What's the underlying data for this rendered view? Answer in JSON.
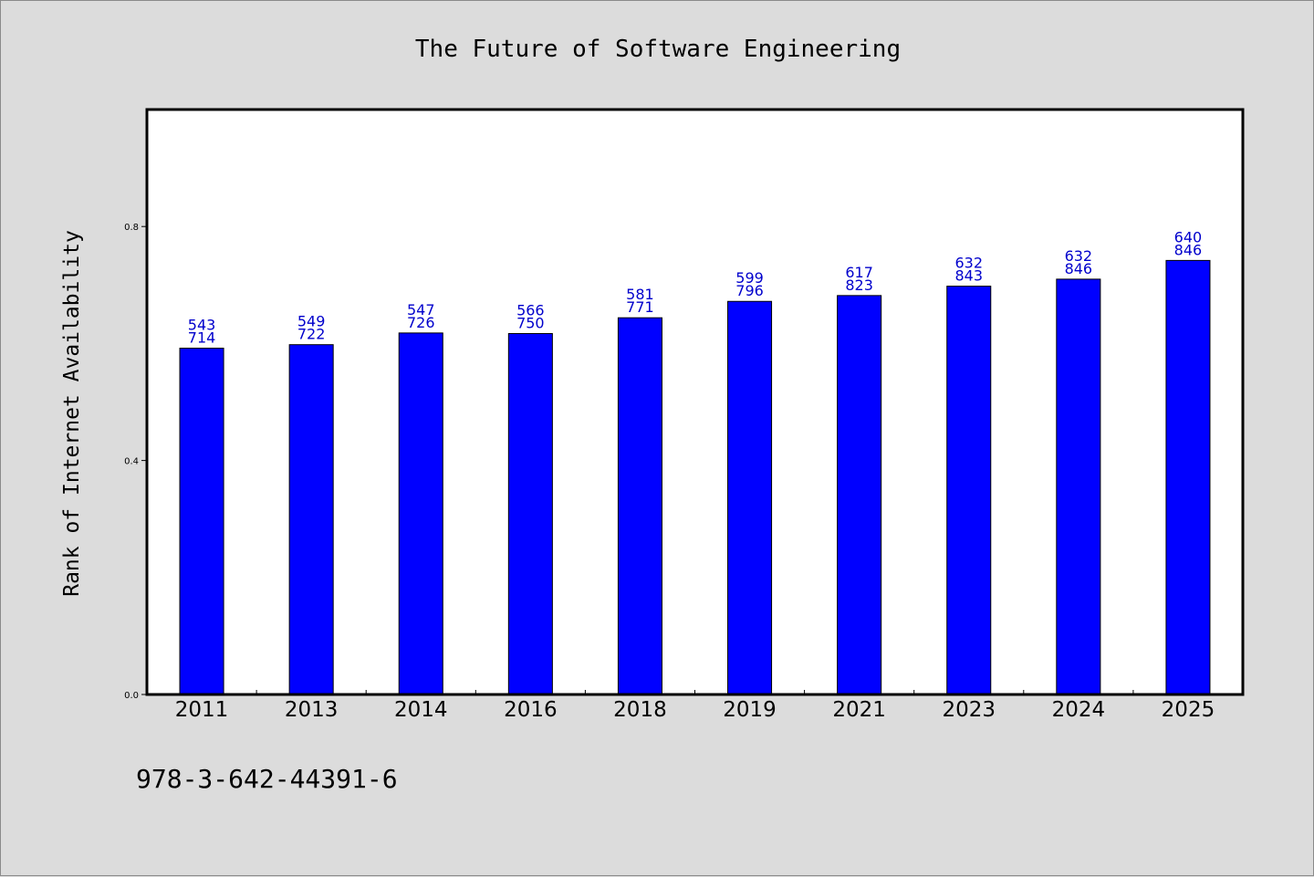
{
  "chart_data": {
    "type": "bar",
    "title": "The Future of Software Engineering",
    "xlabel": "",
    "ylabel": "Rank of Internet Availability",
    "ylim": [
      0,
      1.0
    ],
    "yticks": [
      0.0,
      0.4,
      0.8
    ],
    "ytick_labels": [
      "0.0",
      "0.4",
      "0.8"
    ],
    "categories": [
      "2011",
      "2013",
      "2014",
      "2016",
      "2018",
      "2019",
      "2021",
      "2023",
      "2024",
      "2025"
    ],
    "values": [
      0.592,
      0.598,
      0.618,
      0.617,
      0.644,
      0.672,
      0.682,
      0.698,
      0.71,
      0.742
    ],
    "bar_labels": [
      [
        "543",
        "714"
      ],
      [
        "549",
        "722"
      ],
      [
        "547",
        "726"
      ],
      [
        "566",
        "750"
      ],
      [
        "581",
        "771"
      ],
      [
        "599",
        "796"
      ],
      [
        "617",
        "823"
      ],
      [
        "632",
        "843"
      ],
      [
        "632",
        "846"
      ],
      [
        "640",
        "846"
      ]
    ],
    "bar_color": "#0000ff",
    "label_color": "#0000cc",
    "grid": false,
    "legend": "none"
  },
  "footer": {
    "isbn": "978-3-642-44391-6"
  }
}
